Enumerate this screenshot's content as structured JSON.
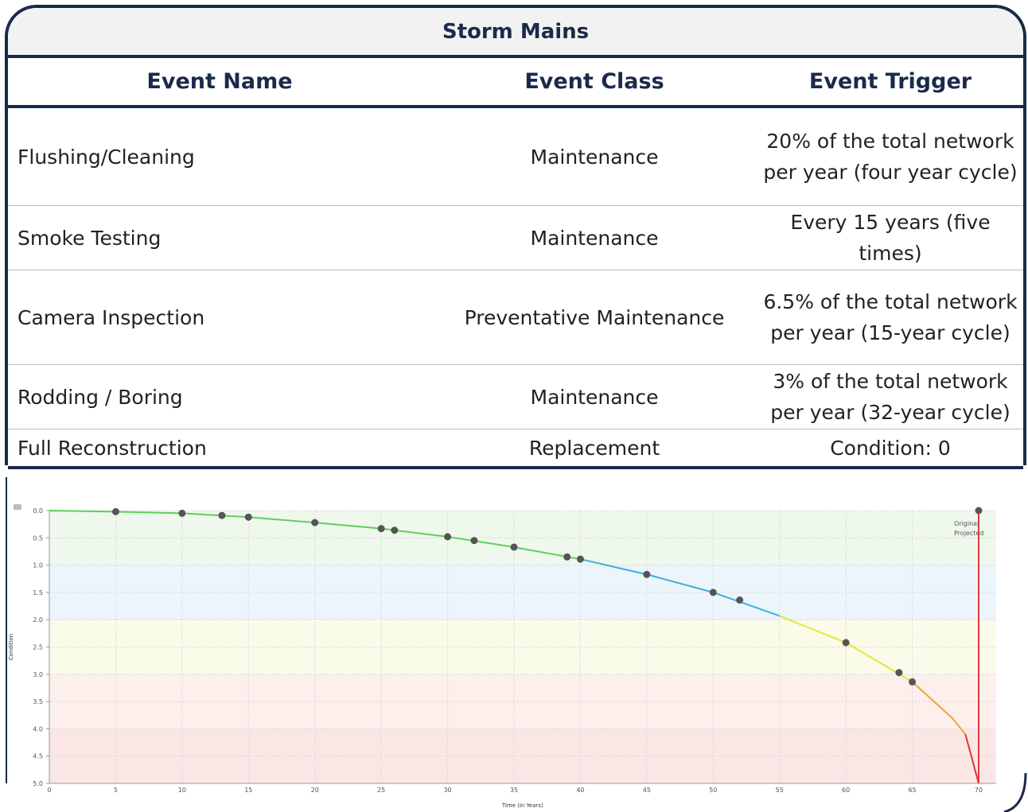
{
  "table": {
    "title": "Storm Mains",
    "columns": [
      "Event Name",
      "Event Class",
      "Event Trigger"
    ],
    "rows": [
      [
        "Flushing/Cleaning",
        "Maintenance",
        "20% of the total network per year (four year cycle)"
      ],
      [
        "Smoke Testing",
        "Maintenance",
        "Every 15 years (five times)"
      ],
      [
        "Camera Inspection",
        "Preventative Maintenance",
        "6.5% of the total network per year (15-year cycle)"
      ],
      [
        "Rodding / Boring",
        "Maintenance",
        "3% of the total network per year (32-year cycle)"
      ],
      [
        "Full Reconstruction",
        "Replacement",
        "Condition: 0"
      ]
    ]
  },
  "chart_data": {
    "type": "line",
    "x_label": "Time (in Years)",
    "y_label": "Condition",
    "xlim": [
      0,
      71.3
    ],
    "ylim": [
      0,
      5
    ],
    "y_inverted": true,
    "grid": true,
    "xticks": [
      0,
      5,
      10,
      15,
      20,
      25,
      30,
      35,
      40,
      45,
      50,
      55,
      60,
      65,
      70
    ],
    "yticks": [
      {
        "value": 0,
        "label": "0.0"
      },
      {
        "value": 0.5,
        "label": "0.5"
      },
      {
        "value": 1,
        "label": "1.0"
      },
      {
        "value": 1.5,
        "label": "1.5"
      },
      {
        "value": 2,
        "label": "2.0"
      },
      {
        "value": 2.5,
        "label": "2.5"
      },
      {
        "value": 3,
        "label": "3.0"
      },
      {
        "value": 3.5,
        "label": "3.5"
      },
      {
        "value": 4,
        "label": "4.0"
      },
      {
        "value": 4.5,
        "label": "4.5"
      },
      {
        "value": 5,
        "label": "5.0"
      }
    ],
    "bands": [
      {
        "from": 0,
        "to": 1,
        "color": "#eef8ec",
        "line_color": "#5fcf5a"
      },
      {
        "from": 1,
        "to": 2,
        "color": "#ecf5fb",
        "line_color": "#3cb2dc"
      },
      {
        "from": 2,
        "to": 3,
        "color": "#fbfbe9",
        "line_color": "#e2e83a"
      },
      {
        "from": 3,
        "to": 4,
        "color": "#fcefec",
        "line_color": "#f2a434"
      },
      {
        "from": 4,
        "to": 5,
        "color": "#fbe6e6",
        "line_color": "#e0342e"
      }
    ],
    "curve": {
      "x": [
        0,
        5,
        10,
        15,
        20,
        25,
        30,
        35,
        40,
        45,
        50,
        55,
        60,
        65,
        68,
        69,
        70
      ],
      "values": [
        0,
        0.02,
        0.05,
        0.12,
        0.22,
        0.33,
        0.48,
        0.67,
        0.89,
        1.17,
        1.5,
        1.93,
        2.42,
        3.14,
        3.8,
        4.1,
        5
      ]
    },
    "events": {
      "color": "#555555",
      "x": [
        5,
        10,
        13,
        15,
        20,
        25,
        26,
        30,
        32,
        35,
        39,
        40,
        45,
        50,
        52,
        60,
        64,
        65,
        70
      ],
      "values": [
        0.02,
        0.05,
        0.09,
        0.12,
        0.22,
        0.33,
        0.36,
        0.48,
        0.55,
        0.67,
        0.85,
        0.89,
        1.17,
        1.5,
        1.64,
        2.42,
        2.97,
        3.14,
        0
      ]
    },
    "marker_line": {
      "x": 70,
      "color": "#e03c3c"
    },
    "annotations": [
      "Original",
      "Projected"
    ]
  }
}
